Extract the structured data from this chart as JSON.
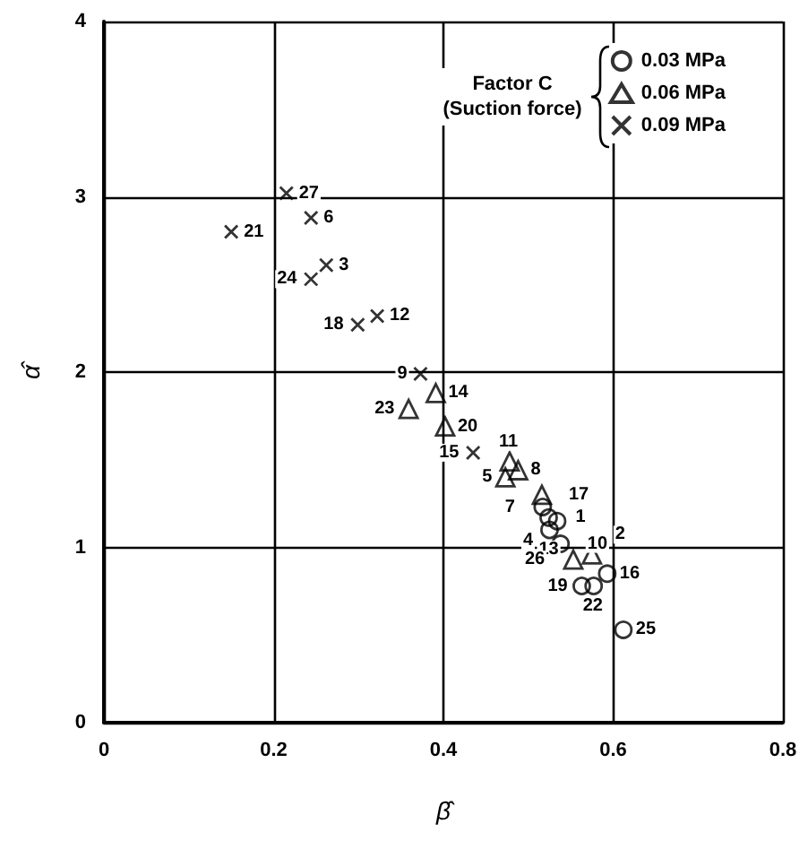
{
  "chart_data": {
    "type": "scatter",
    "xlabel": "β̂",
    "ylabel": "α̂",
    "legend_title": "Factor C\n(Suction force)",
    "xlim": [
      0,
      0.8
    ],
    "xticks": [
      0,
      0.2,
      0.4,
      0.6,
      0.8
    ],
    "ylim": [
      0,
      4
    ],
    "yticks": [
      0,
      1,
      2,
      3,
      4
    ],
    "grid": true,
    "legend": "top right",
    "series": [
      {
        "name": "0.03 MPa",
        "color": "#000000",
        "marker": "circle",
        "x": [
          0.517,
          0.524,
          0.534,
          0.525,
          0.538,
          0.593,
          0.563,
          0.577,
          0.612
        ],
        "values": [
          1.23,
          1.17,
          1.15,
          1.1,
          1.02,
          0.85,
          0.78,
          0.78,
          0.53
        ]
      },
      {
        "name": "0.06 MPa",
        "color": "#000000",
        "marker": "triangle",
        "x": [
          0.391,
          0.359,
          0.402,
          0.478,
          0.473,
          0.488,
          0.516,
          0.553,
          0.575
        ],
        "values": [
          1.88,
          1.79,
          1.69,
          1.49,
          1.4,
          1.44,
          1.3,
          0.93,
          0.96
        ]
      },
      {
        "name": "0.09 MPa",
        "color": "#000000",
        "marker": "cross",
        "x": [
          0.15,
          0.244,
          0.215,
          0.244,
          0.262,
          0.299,
          0.322,
          0.373,
          0.435
        ],
        "values": [
          2.8,
          2.88,
          3.02,
          2.53,
          2.61,
          2.27,
          2.32,
          1.99,
          1.54
        ]
      }
    ],
    "annotations": [
      {
        "text": "7",
        "x": 0.517,
        "y": 1.23
      },
      {
        "text": "1",
        "x": 0.524,
        "y": 1.17
      },
      {
        "text": "4",
        "x": 0.534,
        "y": 1.15
      },
      {
        "text": "13",
        "x": 0.525,
        "y": 1.1
      },
      {
        "text": "10",
        "x": 0.538,
        "y": 1.02
      },
      {
        "text": "16",
        "x": 0.593,
        "y": 0.85
      },
      {
        "text": "19",
        "x": 0.563,
        "y": 0.78
      },
      {
        "text": "22",
        "x": 0.577,
        "y": 0.78
      },
      {
        "text": "25",
        "x": 0.612,
        "y": 0.53
      },
      {
        "text": "14",
        "x": 0.391,
        "y": 1.88
      },
      {
        "text": "23",
        "x": 0.359,
        "y": 1.79
      },
      {
        "text": "20",
        "x": 0.402,
        "y": 1.69
      },
      {
        "text": "11",
        "x": 0.478,
        "y": 1.49
      },
      {
        "text": "5",
        "x": 0.473,
        "y": 1.4
      },
      {
        "text": "8",
        "x": 0.488,
        "y": 1.44
      },
      {
        "text": "17",
        "x": 0.516,
        "y": 1.3
      },
      {
        "text": "26",
        "x": 0.553,
        "y": 0.93
      },
      {
        "text": "2",
        "x": 0.575,
        "y": 0.96
      },
      {
        "text": "21",
        "x": 0.15,
        "y": 2.8
      },
      {
        "text": "6",
        "x": 0.244,
        "y": 2.88
      },
      {
        "text": "27",
        "x": 0.215,
        "y": 3.02
      },
      {
        "text": "24",
        "x": 0.244,
        "y": 2.53
      },
      {
        "text": "3",
        "x": 0.262,
        "y": 2.61
      },
      {
        "text": "18",
        "x": 0.299,
        "y": 2.27
      },
      {
        "text": "12",
        "x": 0.322,
        "y": 2.32
      },
      {
        "text": "9",
        "x": 0.373,
        "y": 1.99
      },
      {
        "text": "15",
        "x": 0.435,
        "y": 1.54
      }
    ]
  }
}
